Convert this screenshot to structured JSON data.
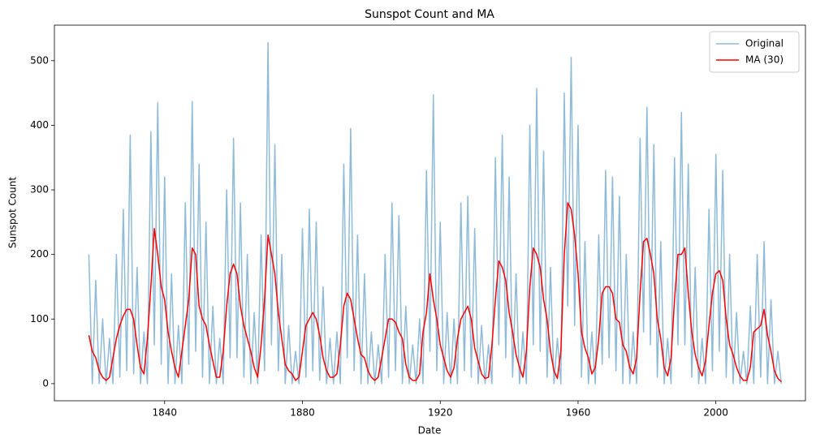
{
  "chart_data": {
    "type": "line",
    "title": "Sunspot Count and MA",
    "xlabel": "Date",
    "ylabel": "Sunspot Count",
    "x": [
      1818,
      1819,
      1820,
      1821,
      1822,
      1823,
      1824,
      1825,
      1826,
      1827,
      1828,
      1829,
      1830,
      1831,
      1832,
      1833,
      1834,
      1835,
      1836,
      1837,
      1838,
      1839,
      1840,
      1841,
      1842,
      1843,
      1844,
      1845,
      1846,
      1847,
      1848,
      1849,
      1850,
      1851,
      1852,
      1853,
      1854,
      1855,
      1856,
      1857,
      1858,
      1859,
      1860,
      1861,
      1862,
      1863,
      1864,
      1865,
      1866,
      1867,
      1868,
      1869,
      1870,
      1871,
      1872,
      1873,
      1874,
      1875,
      1876,
      1877,
      1878,
      1879,
      1880,
      1881,
      1882,
      1883,
      1884,
      1885,
      1886,
      1887,
      1888,
      1889,
      1890,
      1891,
      1892,
      1893,
      1894,
      1895,
      1896,
      1897,
      1898,
      1899,
      1900,
      1901,
      1902,
      1903,
      1904,
      1905,
      1906,
      1907,
      1908,
      1909,
      1910,
      1911,
      1912,
      1913,
      1914,
      1915,
      1916,
      1917,
      1918,
      1919,
      1920,
      1921,
      1922,
      1923,
      1924,
      1925,
      1926,
      1927,
      1928,
      1929,
      1930,
      1931,
      1932,
      1933,
      1934,
      1935,
      1936,
      1937,
      1938,
      1939,
      1940,
      1941,
      1942,
      1943,
      1944,
      1945,
      1946,
      1947,
      1948,
      1949,
      1950,
      1951,
      1952,
      1953,
      1954,
      1955,
      1956,
      1957,
      1958,
      1959,
      1960,
      1961,
      1962,
      1963,
      1964,
      1965,
      1966,
      1967,
      1968,
      1969,
      1970,
      1971,
      1972,
      1973,
      1974,
      1975,
      1976,
      1977,
      1978,
      1979,
      1980,
      1981,
      1982,
      1983,
      1984,
      1985,
      1986,
      1987,
      1988,
      1989,
      1990,
      1991,
      1992,
      1993,
      1994,
      1995,
      1996,
      1997,
      1998,
      1999,
      2000,
      2001,
      2002,
      2003,
      2004,
      2005,
      2006,
      2007,
      2008,
      2009,
      2010,
      2011,
      2012,
      2013,
      2014,
      2015,
      2016,
      2017,
      2018,
      2019
    ],
    "series": [
      {
        "name": "Original",
        "color": "#1f77b4",
        "alpha": 0.5,
        "values": [
          200,
          0,
          160,
          0,
          100,
          0,
          70,
          0,
          200,
          10,
          270,
          20,
          385,
          15,
          180,
          0,
          80,
          0,
          390,
          60,
          435,
          30,
          320,
          0,
          170,
          0,
          90,
          0,
          280,
          30,
          437,
          50,
          340,
          10,
          250,
          0,
          120,
          0,
          70,
          0,
          300,
          40,
          380,
          40,
          280,
          10,
          200,
          0,
          110,
          0,
          230,
          20,
          528,
          60,
          370,
          20,
          200,
          0,
          90,
          0,
          50,
          0,
          240,
          10,
          270,
          20,
          250,
          5,
          150,
          0,
          70,
          0,
          80,
          0,
          340,
          40,
          395,
          20,
          230,
          0,
          170,
          0,
          80,
          0,
          60,
          0,
          200,
          10,
          280,
          20,
          260,
          0,
          120,
          0,
          60,
          0,
          100,
          0,
          330,
          50,
          447,
          20,
          250,
          0,
          110,
          0,
          100,
          0,
          280,
          20,
          290,
          10,
          240,
          0,
          90,
          0,
          60,
          0,
          350,
          60,
          385,
          40,
          320,
          10,
          170,
          0,
          80,
          0,
          400,
          60,
          457,
          50,
          360,
          10,
          180,
          0,
          70,
          0,
          450,
          120,
          505,
          90,
          400,
          10,
          220,
          0,
          80,
          0,
          230,
          30,
          330,
          40,
          320,
          20,
          290,
          0,
          200,
          0,
          80,
          0,
          380,
          80,
          428,
          60,
          370,
          10,
          220,
          0,
          70,
          0,
          350,
          60,
          420,
          60,
          340,
          10,
          180,
          0,
          70,
          0,
          270,
          20,
          355,
          50,
          330,
          10,
          200,
          0,
          110,
          0,
          50,
          0,
          120,
          0,
          200,
          10,
          220,
          0,
          130,
          0,
          50,
          0
        ]
      },
      {
        "name": "MA (30)",
        "color": "#ff0000",
        "values": [
          75,
          50,
          40,
          20,
          10,
          5,
          10,
          40,
          70,
          90,
          105,
          115,
          115,
          100,
          60,
          25,
          15,
          70,
          150,
          240,
          200,
          150,
          130,
          80,
          50,
          25,
          10,
          50,
          90,
          130,
          210,
          200,
          120,
          100,
          90,
          60,
          35,
          10,
          10,
          50,
          120,
          170,
          185,
          170,
          120,
          90,
          70,
          50,
          25,
          10,
          60,
          130,
          230,
          200,
          170,
          110,
          70,
          30,
          20,
          15,
          5,
          10,
          50,
          90,
          100,
          110,
          100,
          75,
          40,
          20,
          10,
          10,
          15,
          60,
          120,
          140,
          130,
          100,
          70,
          45,
          40,
          20,
          10,
          5,
          10,
          40,
          70,
          100,
          100,
          95,
          80,
          70,
          30,
          10,
          5,
          5,
          15,
          80,
          110,
          170,
          130,
          100,
          60,
          40,
          20,
          10,
          25,
          70,
          100,
          110,
          120,
          100,
          55,
          35,
          15,
          8,
          10,
          60,
          130,
          190,
          180,
          160,
          110,
          80,
          45,
          25,
          10,
          50,
          150,
          210,
          200,
          180,
          130,
          100,
          50,
          20,
          8,
          50,
          200,
          280,
          270,
          230,
          170,
          80,
          55,
          40,
          15,
          25,
          70,
          140,
          150,
          150,
          140,
          100,
          95,
          60,
          50,
          25,
          15,
          40,
          140,
          220,
          225,
          200,
          170,
          100,
          70,
          25,
          12,
          40,
          130,
          200,
          200,
          210,
          140,
          80,
          45,
          25,
          12,
          35,
          90,
          140,
          170,
          175,
          160,
          100,
          60,
          45,
          25,
          12,
          5,
          5,
          25,
          80,
          85,
          90,
          115,
          75,
          50,
          20,
          8,
          3
        ]
      }
    ],
    "xlim": [
      1808,
      2026
    ],
    "xticks": [
      1840,
      1880,
      1920,
      1960,
      2000
    ],
    "ylim": [
      -26.5,
      555
    ],
    "yticks": [
      0,
      100,
      200,
      300,
      400,
      500
    ],
    "legend": "upper right"
  }
}
